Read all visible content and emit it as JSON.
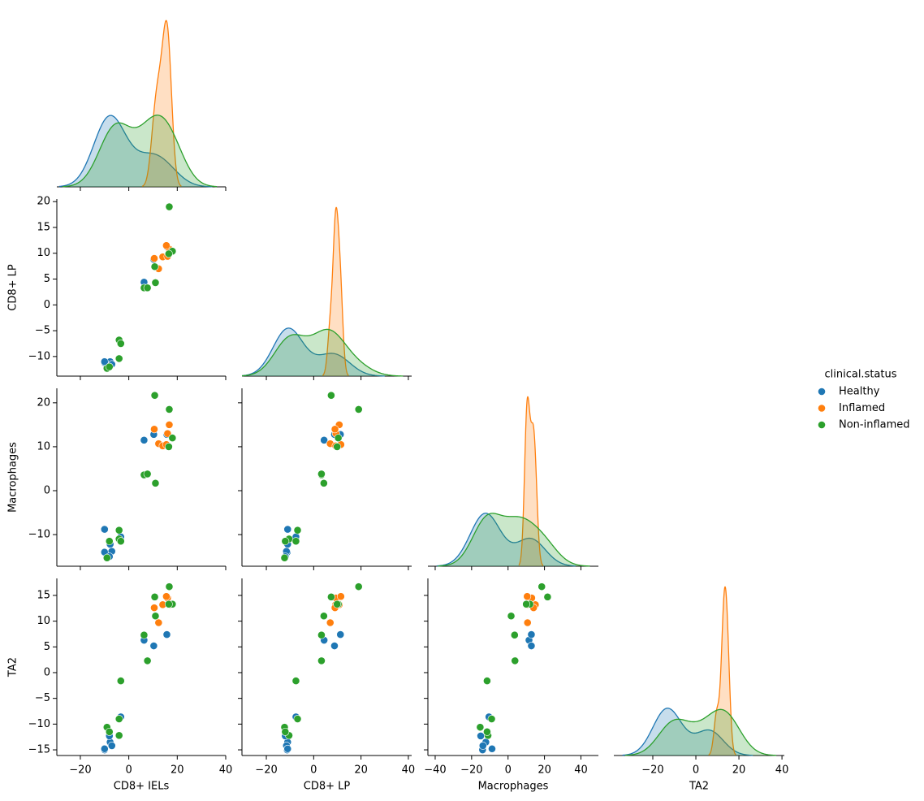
{
  "chart_data": {
    "type": "pairplot",
    "legend_title": "clinical.status",
    "legend_position": "right",
    "axes": [
      {
        "label": "CD8+ IELs",
        "xlim": [
          -29.7,
          40
        ],
        "xticks": [
          {
            "value": -20,
            "label": "−20"
          },
          0,
          20,
          40
        ]
      },
      {
        "label": "CD8+ LP",
        "xlim": [
          -30.3,
          41.4
        ],
        "xticks": [
          {
            "value": -20,
            "label": "−20"
          },
          0,
          20,
          40
        ],
        "ylim": [
          -13.8,
          20.5
        ],
        "yticks": [
          {
            "value": -10,
            "label": "−10"
          },
          {
            "value": -5,
            "label": "−5"
          },
          0,
          5,
          10,
          15,
          20
        ]
      },
      {
        "label": "Macrophages",
        "xlim": [
          -44,
          49.6
        ],
        "xticks": [
          {
            "value": -40,
            "label": "−40"
          },
          {
            "value": -20,
            "label": "−20"
          },
          0,
          20,
          40
        ],
        "ylim": [
          -17.2,
          23.3
        ],
        "yticks": [
          {
            "value": -10,
            "label": "−10"
          },
          0,
          10,
          20
        ]
      },
      {
        "label": "TA2",
        "xlim": [
          -38.1,
          41.1
        ],
        "xticks": [
          {
            "value": -20,
            "label": "−20"
          },
          0,
          20,
          40
        ],
        "ylim": [
          -16.1,
          18.3
        ],
        "yticks": [
          {
            "value": -15,
            "label": "−15"
          },
          {
            "value": -10,
            "label": "−10"
          },
          {
            "value": -5,
            "label": "−5"
          },
          0,
          5,
          10,
          15
        ]
      }
    ],
    "series": [
      {
        "name": "Healthy",
        "color": "#1f77b4",
        "values": [
          [
            6.3,
            10.3,
            15.7,
            -3.3,
            -10,
            -7.7,
            -7,
            -10,
            -8
          ],
          [
            4.4,
            8.8,
            11.3,
            -7.5,
            -11.2,
            -11,
            -11.5,
            -11,
            -12
          ],
          [
            11.5,
            12.8,
            12.8,
            -10.5,
            -14,
            -12.2,
            -13.8,
            -8.8,
            -15
          ],
          [
            6.3,
            5.2,
            7.4,
            -8.6,
            -15,
            -13.5,
            -14.2,
            -14.8,
            -12.3
          ]
        ]
      },
      {
        "name": "Inflamed",
        "color": "#ff7f0e",
        "values": [
          [
            12.3,
            14,
            16,
            16.7,
            10.5,
            15.5
          ],
          [
            7,
            9.3,
            9.4,
            10.8,
            9,
            11.5
          ],
          [
            10.7,
            10.2,
            13,
            15,
            14,
            10.5
          ],
          [
            9.7,
            13.2,
            14.5,
            13.2,
            12.6,
            14.8
          ]
        ]
      },
      {
        "name": "Non-inflamed",
        "color": "#2ca02c",
        "values": [
          [
            16.7,
            6.3,
            7.7,
            11,
            10.7,
            18,
            16.5,
            -4,
            -4,
            -3.3,
            -9,
            -8
          ],
          [
            19,
            3.3,
            3.3,
            4.3,
            7.4,
            10.4,
            9.9,
            -6.8,
            -10.4,
            -7.5,
            -12.3,
            -12
          ],
          [
            18.5,
            3.6,
            3.8,
            1.7,
            21.7,
            12,
            10,
            -9,
            -11,
            -11.5,
            -15.3,
            -11.5
          ],
          [
            16.7,
            7.3,
            2.3,
            11,
            14.7,
            13.3,
            13.3,
            -9,
            -12.2,
            -1.6,
            -10.6,
            -11.5
          ]
        ]
      }
    ]
  }
}
